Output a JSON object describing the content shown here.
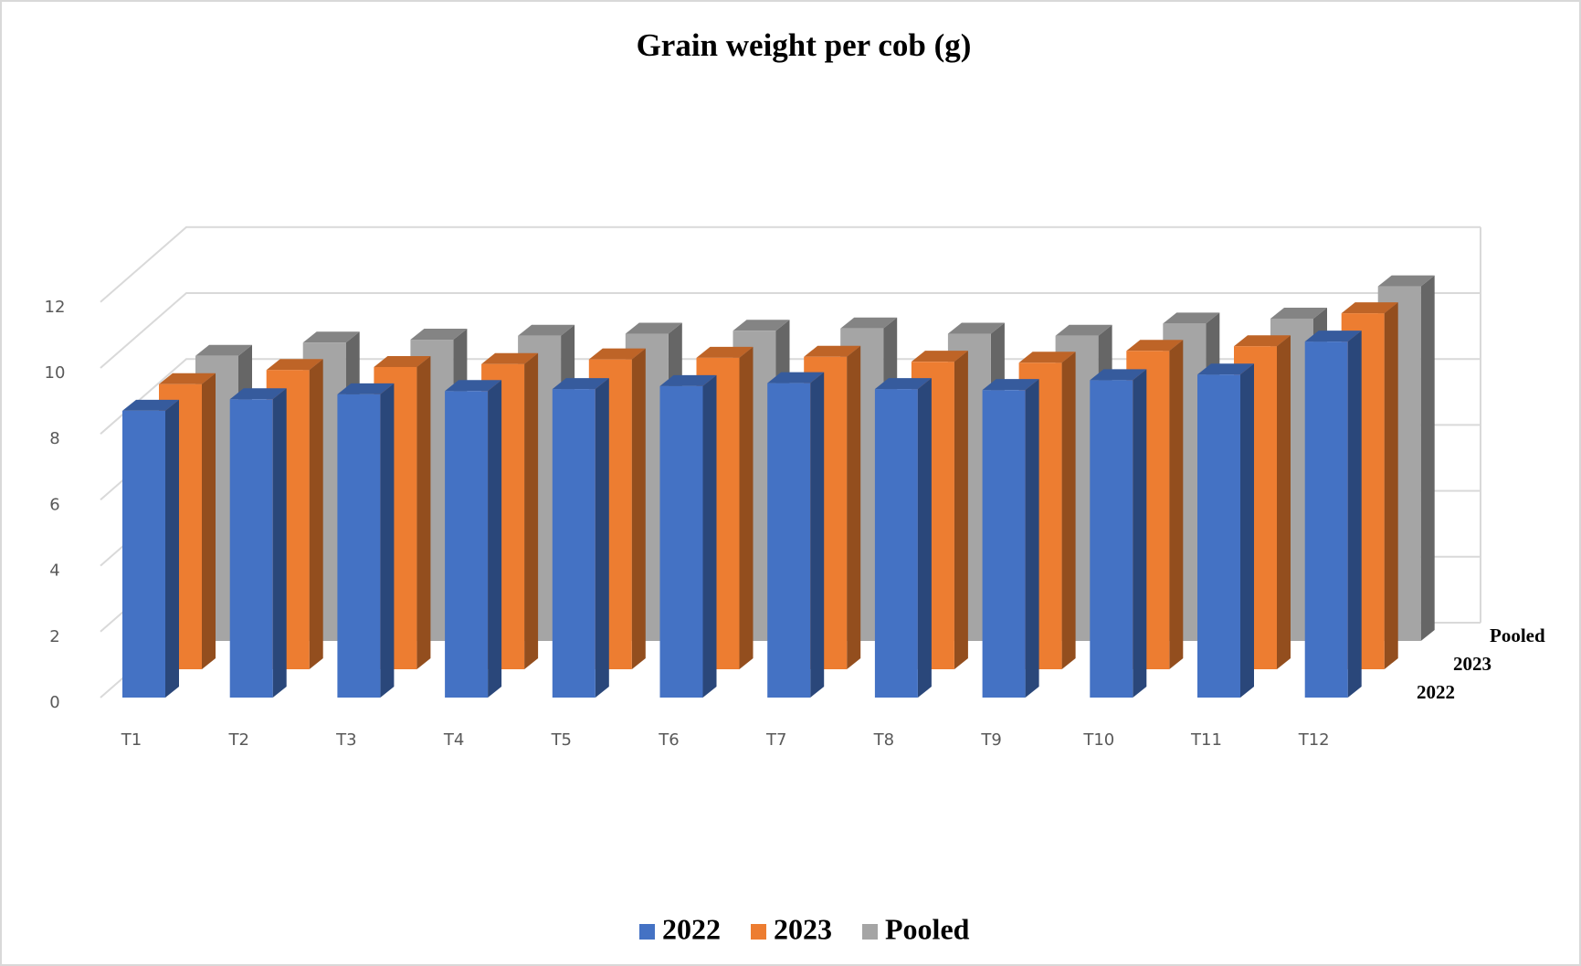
{
  "chart_data": {
    "type": "bar3d",
    "title": "Grain weight per cob (g)",
    "categories": [
      "T1",
      "T2",
      "T3",
      "T4",
      "T5",
      "T6",
      "T7",
      "T8",
      "T9",
      "T10",
      "T11",
      "T12"
    ],
    "series": [
      {
        "name": "2022",
        "color": "#4472c4",
        "values": [
          8.7,
          9.05,
          9.2,
          9.3,
          9.36,
          9.45,
          9.54,
          9.36,
          9.33,
          9.63,
          9.8,
          10.8
        ]
      },
      {
        "name": "2023",
        "color": "#ed7d31",
        "values": [
          8.65,
          9.08,
          9.17,
          9.26,
          9.4,
          9.45,
          9.48,
          9.33,
          9.3,
          9.66,
          9.8,
          10.8
        ]
      },
      {
        "name": "Pooled",
        "color": "#a5a5a5",
        "values": [
          8.65,
          9.05,
          9.14,
          9.26,
          9.32,
          9.41,
          9.48,
          9.32,
          9.26,
          9.63,
          9.78,
          10.76
        ]
      }
    ],
    "ylim": [
      0,
      12
    ],
    "yticks": [
      0,
      2,
      4,
      6,
      8,
      10,
      12
    ],
    "grid": true,
    "legend": "bottom"
  }
}
